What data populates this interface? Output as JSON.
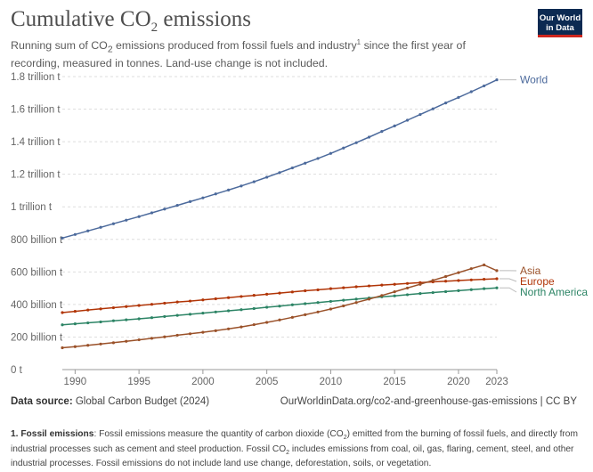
{
  "header": {
    "title_main": "Cumulative CO",
    "title_sub": "2",
    "title_end": " emissions",
    "subtitle_1": "Running sum of CO",
    "subtitle_sub": "2",
    "subtitle_2": " emissions produced from fossil fuels and industry",
    "subtitle_sup": "1",
    "subtitle_3": " since the first year of recording, measured in tonnes. Land-use change is not included."
  },
  "logo": {
    "line1": "Our World",
    "line2": "in Data"
  },
  "footer": {
    "source_label": "Data source:",
    "source_value": " Global Carbon Budget (2024)",
    "url": "OurWorldinData.org/co2-and-greenhouse-gas-emissions | CC BY"
  },
  "footnote": {
    "bold": "1. Fossil emissions",
    "part1": ": Fossil emissions measure the quantity of carbon dioxide (CO",
    "sub1": "2",
    "part2": ") emitted from the burning of fossil fuels, and directly from industrial processes such as cement and steel production. Fossil CO",
    "sub2": "2",
    "part3": " includes emissions from coal, oil, gas, flaring, cement, steel, and other industrial processes. Fossil emissions do not include land use change, deforestation, soils, or vegetation."
  },
  "chart_data": {
    "type": "line",
    "x": [
      1989,
      1990,
      1991,
      1992,
      1993,
      1994,
      1995,
      1996,
      1997,
      1998,
      1999,
      2000,
      2001,
      2002,
      2003,
      2004,
      2005,
      2006,
      2007,
      2008,
      2009,
      2010,
      2011,
      2012,
      2013,
      2014,
      2015,
      2016,
      2017,
      2018,
      2019,
      2020,
      2021,
      2022,
      2023
    ],
    "xlim": [
      1989,
      2023
    ],
    "ylim": [
      0,
      1800
    ],
    "y_unit": "billion t",
    "xticks": [
      {
        "v": 1990,
        "label": "1990"
      },
      {
        "v": 1995,
        "label": "1995"
      },
      {
        "v": 2000,
        "label": "2000"
      },
      {
        "v": 2005,
        "label": "2005"
      },
      {
        "v": 2010,
        "label": "2010"
      },
      {
        "v": 2015,
        "label": "2015"
      },
      {
        "v": 2020,
        "label": "2020"
      },
      {
        "v": 2023,
        "label": "2023"
      }
    ],
    "yticks": [
      {
        "v": 0,
        "label": "0 t"
      },
      {
        "v": 200,
        "label": "200 billion t"
      },
      {
        "v": 400,
        "label": "400 billion t"
      },
      {
        "v": 600,
        "label": "600 billion t"
      },
      {
        "v": 800,
        "label": "800 billion t"
      },
      {
        "v": 1000,
        "label": "1 trillion t"
      },
      {
        "v": 1200,
        "label": "1.2 trillion t"
      },
      {
        "v": 1400,
        "label": "1.4 trillion t"
      },
      {
        "v": 1600,
        "label": "1.6 trillion t"
      },
      {
        "v": 1800,
        "label": "1.8 trillion t"
      }
    ],
    "grid": "horizontal dashed",
    "series": [
      {
        "name": "World",
        "color": "#4c6a9c",
        "values": [
          808,
          830,
          852,
          874,
          896,
          918,
          940,
          963,
          986,
          1009,
          1032,
          1055,
          1079,
          1103,
          1128,
          1154,
          1182,
          1210,
          1239,
          1268,
          1297,
          1328,
          1361,
          1394,
          1428,
          1463,
          1497,
          1532,
          1567,
          1602,
          1638,
          1672,
          1707,
          1743,
          1780
        ]
      },
      {
        "name": "Europe",
        "color": "#b13507",
        "values": [
          350,
          358,
          366,
          373,
          380,
          387,
          394,
          401,
          408,
          415,
          421,
          428,
          435,
          442,
          449,
          456,
          463,
          470,
          477,
          484,
          490,
          497,
          503,
          509,
          514,
          519,
          524,
          529,
          534,
          539,
          543,
          547,
          551,
          555,
          558
        ]
      },
      {
        "name": "North America",
        "color": "#2c8465",
        "values": [
          275,
          281,
          287,
          293,
          300,
          306,
          312,
          319,
          326,
          333,
          340,
          347,
          354,
          361,
          368,
          375,
          383,
          390,
          398,
          405,
          412,
          419,
          426,
          433,
          440,
          447,
          453,
          460,
          467,
          473,
          479,
          485,
          491,
          497,
          502
        ]
      },
      {
        "name": "Asia",
        "color": "#9a5129",
        "values": [
          134,
          141,
          149,
          157,
          165,
          174,
          183,
          192,
          201,
          211,
          220,
          229,
          239,
          250,
          262,
          276,
          290,
          305,
          321,
          337,
          354,
          372,
          391,
          412,
          433,
          455,
          478,
          501,
          524,
          548,
          572,
          596,
          620,
          643,
          608
        ]
      }
    ]
  }
}
